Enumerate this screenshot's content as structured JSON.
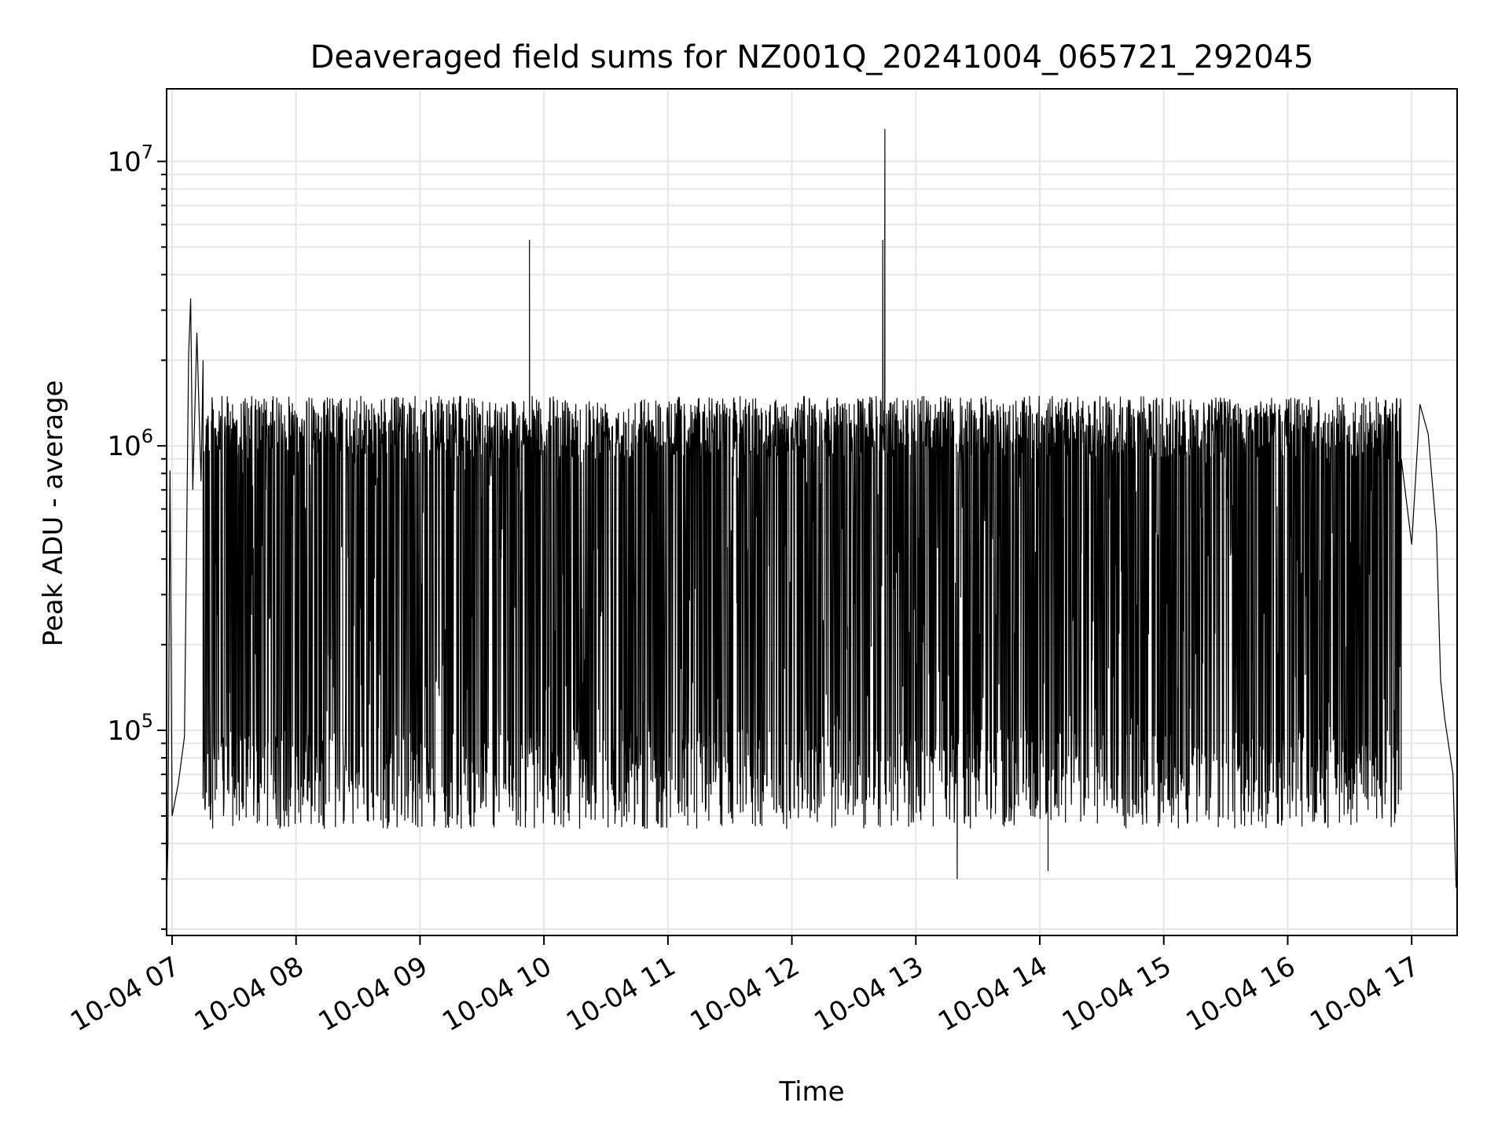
{
  "chart_data": {
    "type": "line",
    "title": "Deaveraged field sums for NZ001Q_20241004_065721_292045",
    "xlabel": "Time",
    "ylabel": "Peak ADU - average",
    "yscale": "log",
    "ylim": [
      19000,
      18000000
    ],
    "xlim": [
      "2024-10-04 06:57:21",
      "2024-10-04 17:22:00"
    ],
    "x_ticks": [
      {
        "value": "2024-10-04 07:00",
        "label": "10-04 07"
      },
      {
        "value": "2024-10-04 08:00",
        "label": "10-04 08"
      },
      {
        "value": "2024-10-04 09:00",
        "label": "10-04 09"
      },
      {
        "value": "2024-10-04 10:00",
        "label": "10-04 10"
      },
      {
        "value": "2024-10-04 11:00",
        "label": "10-04 11"
      },
      {
        "value": "2024-10-04 12:00",
        "label": "10-04 12"
      },
      {
        "value": "2024-10-04 13:00",
        "label": "10-04 13"
      },
      {
        "value": "2024-10-04 14:00",
        "label": "10-04 14"
      },
      {
        "value": "2024-10-04 15:00",
        "label": "10-04 15"
      },
      {
        "value": "2024-10-04 16:00",
        "label": "10-04 16"
      },
      {
        "value": "2024-10-04 17:00",
        "label": "10-04 17"
      }
    ],
    "y_ticks": [
      {
        "value": 100000,
        "base": "10",
        "exp": "5"
      },
      {
        "value": 1000000,
        "base": "10",
        "exp": "6"
      },
      {
        "value": 10000000,
        "base": "10",
        "exp": "7"
      }
    ],
    "grid": true,
    "line_color": "#000000",
    "series": [
      {
        "values": [
          {
            "t": "2024-10-04 06:57:30",
            "y": 28000
          },
          {
            "t": "2024-10-04 06:58:00",
            "y": 40000
          },
          {
            "t": "2024-10-04 06:59:00",
            "y": 820000
          },
          {
            "t": "2024-10-04 07:00:00",
            "y": 50000
          },
          {
            "t": "2024-10-04 07:03:00",
            "y": 65000
          },
          {
            "t": "2024-10-04 07:06:00",
            "y": 95000
          },
          {
            "t": "2024-10-04 07:08:00",
            "y": 2100000
          },
          {
            "t": "2024-10-04 07:09:00",
            "y": 3300000
          },
          {
            "t": "2024-10-04 07:10:00",
            "y": 700000
          },
          {
            "t": "2024-10-04 07:12:00",
            "y": 2500000
          },
          {
            "t": "2024-10-04 07:14:00",
            "y": 750000
          },
          {
            "t": "2024-10-04 07:15:00",
            "y": 2000000
          },
          {
            "t": "2024-10-04 07:18:00",
            "y": 500000
          },
          {
            "t": "2024-10-04 07:22:00",
            "y": 450000
          },
          {
            "t": "2024-10-04 07:26:00",
            "y": 320000
          },
          {
            "t": "2024-10-04 07:30:00",
            "y": 220000
          },
          {
            "t": "2024-10-04 07:34:00",
            "y": 150000
          },
          {
            "t": "2024-10-04 07:38:00",
            "y": 110000
          },
          {
            "t": "2024-10-04 07:44:00",
            "y": 80000
          },
          {
            "t": "2024-10-04 07:50:00",
            "y": 60000
          },
          {
            "t": "2024-10-04 07:55:00",
            "y": 52000
          },
          {
            "t": "2024-10-04 09:53:00",
            "y": 5300000
          },
          {
            "t": "2024-10-04 12:44:00",
            "y": 5300000
          },
          {
            "t": "2024-10-04 12:45:00",
            "y": 13000000
          },
          {
            "t": "2024-10-04 13:20:00",
            "y": 30000
          },
          {
            "t": "2024-10-04 14:04:00",
            "y": 32000
          },
          {
            "t": "2024-10-04 16:55:00",
            "y": 900000
          },
          {
            "t": "2024-10-04 17:00:00",
            "y": 450000
          },
          {
            "t": "2024-10-04 17:04:00",
            "y": 1400000
          },
          {
            "t": "2024-10-04 17:08:00",
            "y": 1100000
          },
          {
            "t": "2024-10-04 17:12:00",
            "y": 500000
          },
          {
            "t": "2024-10-04 17:14:00",
            "y": 150000
          },
          {
            "t": "2024-10-04 17:16:00",
            "y": 110000
          },
          {
            "t": "2024-10-04 17:20:00",
            "y": 70000
          },
          {
            "t": "2024-10-04 17:21:30",
            "y": 28000
          }
        ]
      }
    ],
    "dense_band": {
      "from": "2024-10-04 07:15:00",
      "to": "2024-10-04 16:55:00",
      "upper": 1500000,
      "lower": 45000
    }
  }
}
